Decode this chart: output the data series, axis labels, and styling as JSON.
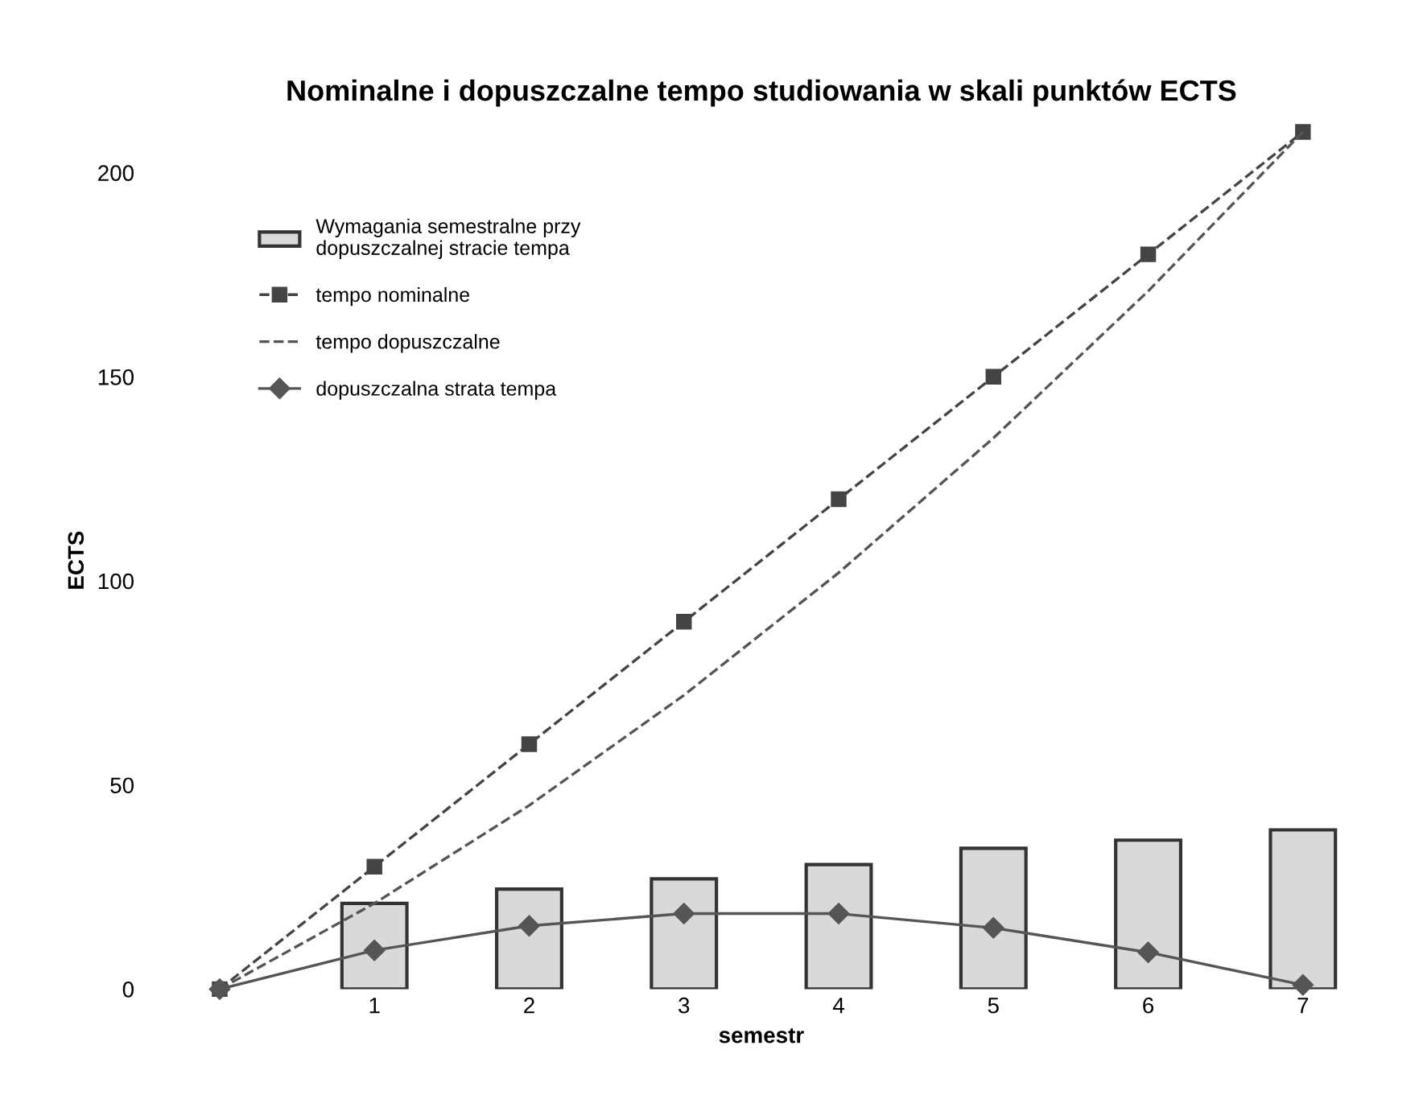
{
  "chart_data": {
    "type": "line",
    "title": "Nominalne i dopuszczalne tempo studiowania w skali punktów ECTS",
    "xlabel": "semestr",
    "ylabel": "ECTS",
    "categories": [
      null,
      "1",
      "2",
      "3",
      "4",
      "5",
      "6",
      "7"
    ],
    "series": [
      {
        "name": "Wymagania semestralne przy\ndopuszczalnej stracie tempa",
        "type": "bar",
        "color": "#d9d9d9",
        "values": [
          null,
          21,
          24.5,
          27,
          30.5,
          34.5,
          36.5,
          39
        ]
      },
      {
        "name": "tempo nominalne",
        "color": "#444444",
        "marker": "square",
        "line_style": "dashed",
        "values": [
          0,
          30,
          60,
          90,
          120,
          150,
          180,
          210
        ]
      },
      {
        "name": "tempo dopuszczalne",
        "color": "#555555",
        "marker": "none",
        "line_style": "dashed",
        "values": [
          0,
          21,
          45,
          72,
          102,
          135,
          171,
          210
        ]
      },
      {
        "name": "dopuszczalna strata tempa",
        "color": "#555555",
        "marker": "diamond",
        "line_style": "solid",
        "values": [
          0,
          9.5,
          15.5,
          18.5,
          18.5,
          15,
          9,
          1
        ]
      }
    ],
    "ylim": [
      0,
      210
    ],
    "yticks": [
      0,
      50,
      100,
      150,
      200
    ],
    "grid": false,
    "legend": "top left"
  }
}
